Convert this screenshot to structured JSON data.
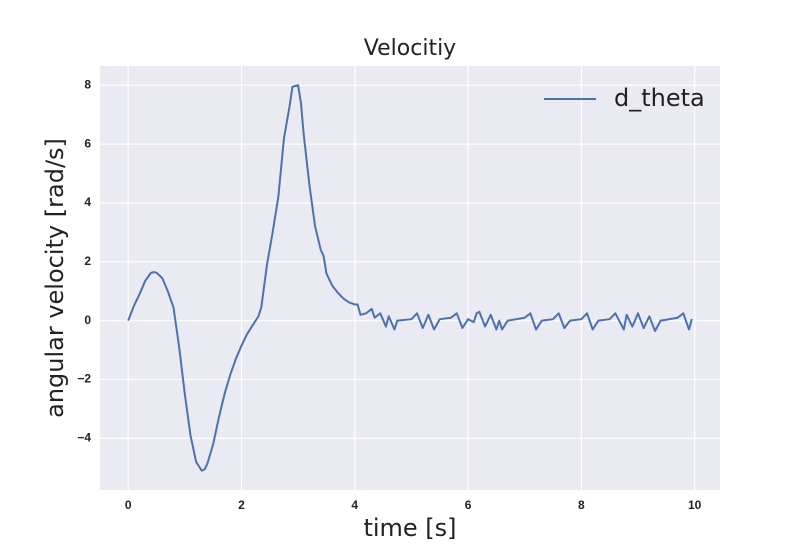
{
  "chart_data": {
    "type": "line",
    "title": "Velocitiy",
    "xlabel": "time [s]",
    "ylabel": "angular velocity [rad/s]",
    "x": [
      0,
      0.1,
      0.2,
      0.3,
      0.4,
      0.45,
      0.5,
      0.6,
      0.7,
      0.8,
      0.9,
      1.0,
      1.1,
      1.2,
      1.3,
      1.35,
      1.4,
      1.5,
      1.6,
      1.7,
      1.8,
      1.9,
      2.0,
      2.1,
      2.2,
      2.3,
      2.35,
      2.45,
      2.55,
      2.65,
      2.75,
      2.85,
      2.9,
      3.0,
      3.05,
      3.1,
      3.2,
      3.3,
      3.4,
      3.45,
      3.5,
      3.6,
      3.7,
      3.8,
      3.9,
      4.0,
      4.05,
      4.1,
      4.2,
      4.3,
      4.35,
      4.45,
      4.55,
      4.6,
      4.7,
      4.75,
      5.0,
      5.1,
      5.2,
      5.3,
      5.4,
      5.5,
      5.7,
      5.8,
      5.9,
      6.0,
      6.1,
      6.15,
      6.2,
      6.3,
      6.4,
      6.5,
      6.55,
      6.6,
      6.7,
      7.0,
      7.1,
      7.2,
      7.3,
      7.5,
      7.6,
      7.7,
      7.8,
      8.0,
      8.1,
      8.2,
      8.3,
      8.5,
      8.6,
      8.75,
      8.8,
      8.9,
      9.0,
      9.1,
      9.2,
      9.3,
      9.4,
      9.7,
      9.8,
      9.9,
      9.95
    ],
    "series": [
      {
        "name": "d_theta",
        "color": "#4c72b0",
        "values": [
          0,
          0.5,
          0.9,
          1.35,
          1.62,
          1.65,
          1.63,
          1.45,
          1.0,
          0.45,
          -0.9,
          -2.5,
          -3.9,
          -4.8,
          -5.1,
          -5.05,
          -4.85,
          -4.2,
          -3.3,
          -2.5,
          -1.85,
          -1.3,
          -0.85,
          -0.45,
          -0.15,
          0.15,
          0.45,
          1.9,
          3.0,
          4.2,
          6.2,
          7.3,
          7.95,
          8.0,
          7.4,
          6.3,
          4.6,
          3.2,
          2.4,
          2.2,
          1.6,
          1.2,
          0.95,
          0.75,
          0.62,
          0.55,
          0.55,
          0.2,
          0.25,
          0.4,
          0.1,
          0.25,
          -0.2,
          0.15,
          -0.3,
          0.0,
          0.05,
          0.25,
          -0.25,
          0.2,
          -0.3,
          0.05,
          0.1,
          0.25,
          -0.25,
          0.05,
          -0.05,
          0.25,
          0.3,
          -0.2,
          0.2,
          -0.3,
          0.0,
          -0.3,
          0.0,
          0.1,
          0.25,
          -0.3,
          0.0,
          0.05,
          0.25,
          -0.25,
          0.0,
          0.05,
          0.25,
          -0.3,
          0.0,
          0.05,
          0.25,
          -0.3,
          0.2,
          -0.2,
          0.25,
          -0.25,
          0.15,
          -0.35,
          0.0,
          0.1,
          0.25,
          -0.3,
          0.05
        ]
      }
    ],
    "xlim": [
      -0.4975,
      10.4475
    ],
    "ylim": [
      -5.755,
      8.655
    ],
    "xticks": [
      0,
      2,
      4,
      6,
      8,
      10
    ],
    "yticks": [
      {
        "value": -4,
        "label": "−4"
      },
      {
        "value": -2,
        "label": "−2"
      },
      0,
      2,
      4,
      6,
      8
    ],
    "grid": true,
    "legend": "upper right"
  }
}
